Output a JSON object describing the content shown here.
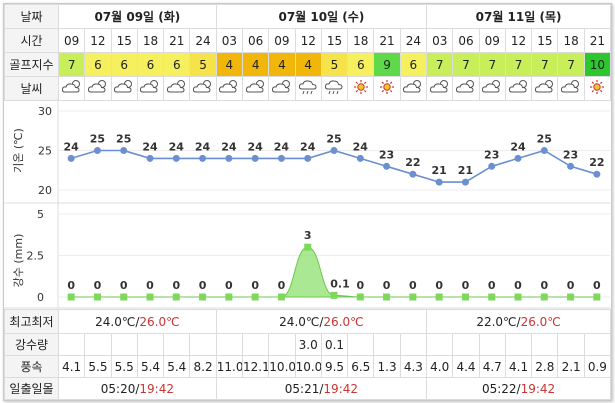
{
  "header": {
    "day_label": "날짜",
    "days": [
      "07월 09일 (화)",
      "07월 10일 (수)",
      "07월 11일 (목)"
    ]
  },
  "time_label": "시간",
  "times": [
    "09",
    "12",
    "15",
    "18",
    "21",
    "24",
    "03",
    "06",
    "09",
    "12",
    "15",
    "18",
    "21",
    "24",
    "03",
    "06",
    "09",
    "12",
    "15",
    "18",
    "21"
  ],
  "golf_label": "골프지수",
  "golf_index": [
    7,
    6,
    6,
    6,
    6,
    5,
    4,
    4,
    4,
    4,
    5,
    6,
    9,
    6,
    7,
    7,
    7,
    7,
    7,
    7,
    10
  ],
  "golf_colors": [
    "#c8ef5a",
    "#f6f05f",
    "#f6f05f",
    "#f6f05f",
    "#f6f05f",
    "#f6e24a",
    "#f1b60a",
    "#f1b60a",
    "#f1b60a",
    "#f1b60a",
    "#f6e24a",
    "#f6f05f",
    "#5ed94a",
    "#f6f05f",
    "#c8ef5a",
    "#c8ef5a",
    "#c8ef5a",
    "#c8ef5a",
    "#c8ef5a",
    "#c8ef5a",
    "#2ec62e"
  ],
  "weather_label": "날씨",
  "weather_icons": [
    "cloud-sun-icon",
    "cloud-sun-icon",
    "cloud-sun-icon",
    "cloud-sun-icon",
    "cloud-sun-icon",
    "cloud-sun-icon",
    "cloud-sun-icon",
    "cloud-sun-icon",
    "cloud-sun-icon",
    "cloud-rain-icon",
    "cloud-rain-icon",
    "sun-icon",
    "sun-icon",
    "cloud-sun-icon",
    "cloud-sun-icon",
    "cloud-sun-icon",
    "cloud-sun-icon",
    "cloud-sun-icon",
    "cloud-sun-icon",
    "cloud-sun-icon",
    "sun-icon"
  ],
  "chart_data": [
    {
      "type": "line",
      "ylabel": "기온 (℃)",
      "ylim": [
        20,
        30
      ],
      "yticks": [
        30,
        25,
        20
      ],
      "x": [
        "09",
        "12",
        "15",
        "18",
        "21",
        "24",
        "03",
        "06",
        "09",
        "12",
        "15",
        "18",
        "21",
        "24",
        "03",
        "06",
        "09",
        "12",
        "15",
        "18",
        "21"
      ],
      "values": [
        24,
        25,
        25,
        24,
        24,
        24,
        24,
        24,
        24,
        24,
        25,
        24,
        23,
        22,
        21,
        21,
        23,
        24,
        25,
        23,
        22
      ],
      "color": "#6b8fd1",
      "grid": true
    },
    {
      "type": "area",
      "ylabel": "강수 (mm)",
      "ylim": [
        0,
        5
      ],
      "yticks": [
        "5",
        "2.5",
        "0"
      ],
      "x": [
        "09",
        "12",
        "15",
        "18",
        "21",
        "24",
        "03",
        "06",
        "09",
        "12",
        "15",
        "18",
        "21",
        "24",
        "03",
        "06",
        "09",
        "12",
        "15",
        "18",
        "21"
      ],
      "values": [
        0,
        0,
        0,
        0,
        0,
        0,
        0,
        0,
        0,
        3,
        0.1,
        0,
        0,
        0,
        0,
        0,
        0,
        0,
        0,
        0,
        0
      ],
      "labels": [
        "0",
        "0",
        "0",
        "0",
        "0",
        "0",
        "0",
        "0",
        "0",
        "3",
        "0.1",
        "0",
        "0",
        "0",
        "0",
        "0",
        "0",
        "0",
        "0",
        "0",
        "0"
      ],
      "color": "#8fe06f",
      "grid": true
    }
  ],
  "minmax": {
    "label": "최고최저",
    "days": [
      {
        "min": "24.0℃",
        "sep": "/",
        "max": "26.0℃"
      },
      {
        "min": "24.0℃",
        "sep": "/",
        "max": "26.0℃"
      },
      {
        "min": "22.0℃",
        "sep": "/",
        "max": "26.0℃"
      }
    ]
  },
  "precip": {
    "label": "강수량",
    "values": [
      "",
      "",
      "",
      "",
      "",
      "",
      "",
      "",
      "",
      "3.0",
      "0.1",
      "",
      "",
      "",
      "",
      "",
      "",
      "",
      "",
      "",
      ""
    ]
  },
  "wind": {
    "label": "풍속",
    "values": [
      "4.1",
      "5.5",
      "5.5",
      "5.4",
      "5.4",
      "8.2",
      "11.0",
      "12.1",
      "10.0",
      "10.0",
      "9.5",
      "6.5",
      "1.3",
      "4.3",
      "4.0",
      "4.4",
      "4.7",
      "4.1",
      "2.8",
      "2.1",
      "0.9"
    ]
  },
  "sun": {
    "label": "일출일몰",
    "days": [
      {
        "rise": "05:20",
        "sep": "/",
        "set": "19:42"
      },
      {
        "rise": "05:21",
        "sep": "/",
        "set": "19:42"
      },
      {
        "rise": "05:22",
        "sep": "/",
        "set": "19:42"
      }
    ]
  }
}
